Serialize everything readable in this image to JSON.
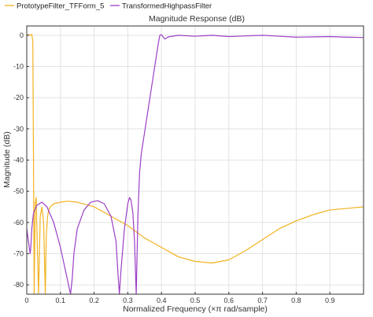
{
  "colors": {
    "prototype": "#f2b21f",
    "transformed": "#9b3fc4",
    "grid": "#e3e3e3",
    "axis": "#333333",
    "plot_bg": "#ffffff"
  },
  "legend": {
    "items": [
      {
        "label": "PrototypeFilter_TFForm_5",
        "color": "#f2b21f"
      },
      {
        "label": "TransformedHighpassFilter",
        "color": "#9b3fc4"
      }
    ]
  },
  "chart_data": {
    "type": "line",
    "title": "Magnitude Response (dB)",
    "xlabel": "Normalized Frequency (×π rad/sample)",
    "ylabel": "Magnitude (dB)",
    "xlim": [
      0,
      1
    ],
    "ylim": [
      -83,
      3
    ],
    "grid": true,
    "legend_position": "top-left (above plot)",
    "xticks": [
      0,
      0.1,
      0.2,
      0.3,
      0.4,
      0.5,
      0.6,
      0.7,
      0.8,
      0.9
    ],
    "xtick_labels": [
      "0",
      "0.1",
      "0.2",
      "0.3",
      "0.4",
      "0.5",
      "0.6",
      "0.7",
      "0.8",
      "0.9"
    ],
    "yticks": [
      0,
      -10,
      -20,
      -30,
      -40,
      -50,
      -60,
      -70,
      -80
    ],
    "ytick_labels": [
      "0",
      "-10",
      "-20",
      "-30",
      "-40",
      "-50",
      "-60",
      "-70",
      "-80"
    ],
    "series": [
      {
        "name": "PrototypeFilter_TFForm_5",
        "x": [
          0,
          0.005,
          0.01,
          0.015,
          0.018,
          0.02,
          0.022,
          0.025,
          0.028,
          0.03,
          0.035,
          0.04,
          0.045,
          0.05,
          0.055,
          0.058,
          0.062,
          0.065,
          0.07,
          0.08,
          0.1,
          0.12,
          0.15,
          0.2,
          0.25,
          0.3,
          0.35,
          0.4,
          0.45,
          0.5,
          0.55,
          0.6,
          0.65,
          0.7,
          0.75,
          0.8,
          0.85,
          0.9,
          0.95,
          1.0
        ],
        "y": [
          0,
          0.2,
          0,
          0.3,
          -2,
          -40,
          -83,
          -54,
          -52,
          -62,
          -83,
          -58,
          -55,
          -60,
          -83,
          -64,
          -58,
          -56,
          -55,
          -54,
          -53.5,
          -53.2,
          -53.5,
          -55,
          -58,
          -61,
          -65,
          -68,
          -71,
          -72.5,
          -73,
          -72,
          -69,
          -65.5,
          -62,
          -59.5,
          -57.5,
          -56,
          -55.5,
          -55
        ]
      },
      {
        "name": "TransformedHighpassFilter",
        "x": [
          0,
          0.005,
          0.01,
          0.012,
          0.015,
          0.02,
          0.03,
          0.045,
          0.06,
          0.08,
          0.1,
          0.12,
          0.13,
          0.135,
          0.14,
          0.15,
          0.17,
          0.19,
          0.21,
          0.23,
          0.25,
          0.265,
          0.27,
          0.275,
          0.28,
          0.29,
          0.3,
          0.305,
          0.31,
          0.315,
          0.32,
          0.325,
          0.33,
          0.335,
          0.34,
          0.35,
          0.36,
          0.37,
          0.38,
          0.39,
          0.395,
          0.4,
          0.41,
          0.42,
          0.45,
          0.5,
          0.55,
          0.6,
          0.65,
          0.7,
          0.75,
          0.8,
          0.85,
          0.9,
          0.95,
          1.0
        ],
        "y": [
          -62,
          -66,
          -70,
          -68,
          -62,
          -57,
          -54.5,
          -53.5,
          -55,
          -60,
          -68,
          -78,
          -83,
          -78,
          -70,
          -62,
          -56,
          -53.5,
          -53,
          -54,
          -58,
          -66,
          -75,
          -83,
          -75,
          -62,
          -54,
          -52,
          -53,
          -57,
          -66,
          -83,
          -58,
          -44,
          -38,
          -31,
          -24,
          -17,
          -10,
          -3,
          0,
          0.2,
          -1.2,
          -0.5,
          0,
          -0.3,
          0,
          -0.4,
          -0.2,
          0,
          -0.3,
          -0.6,
          -0.5,
          -0.4,
          -0.6,
          -0.7
        ]
      }
    ]
  }
}
